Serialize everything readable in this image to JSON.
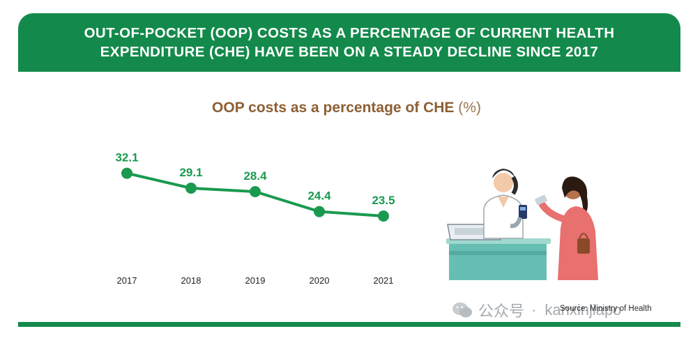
{
  "banner": {
    "line1": "OUT-OF-POCKET (OOP) COSTS AS A PERCENTAGE OF CURRENT HEALTH",
    "line2": "EXPENDITURE (CHE) HAVE BEEN ON A STEADY DECLINE SINCE 2017"
  },
  "chart_data": {
    "type": "line",
    "title": "OOP costs as a percentage of CHE",
    "unit": "(%)",
    "x": [
      "2017",
      "2018",
      "2019",
      "2020",
      "2021"
    ],
    "series": [
      {
        "values": [
          32.1,
          29.1,
          28.4,
          24.4,
          23.5
        ],
        "labels": [
          "32.1",
          "29.1",
          "28.4",
          "24.4",
          "23.5"
        ]
      }
    ],
    "grid": false,
    "legend": "none",
    "colors": {
      "line": "#1a9a4f",
      "labels": "#1a9a4f",
      "ticks": "#222222"
    }
  },
  "source": "Source: Ministry of Health",
  "watermark": {
    "platform": "公众号",
    "separator": "·",
    "account": "kanxinjiapo"
  },
  "colors": {
    "brand_green": "#138a4b",
    "title_brown": "#8d5f33"
  }
}
